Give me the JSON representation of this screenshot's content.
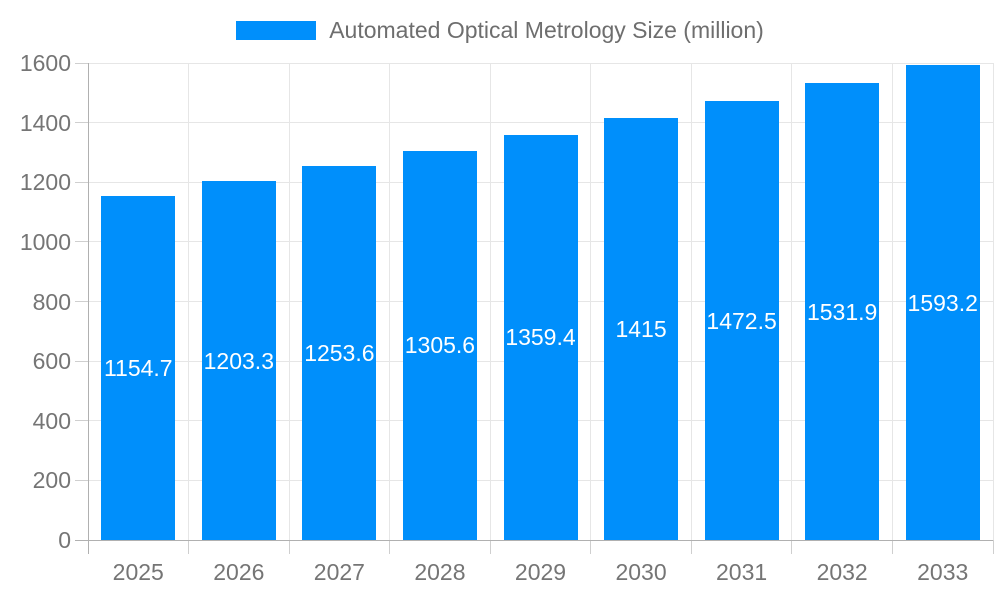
{
  "chart_data": {
    "type": "bar",
    "title": "Automated Optical Metrology Size (million)",
    "categories": [
      "2025",
      "2026",
      "2027",
      "2028",
      "2029",
      "2030",
      "2031",
      "2032",
      "2033"
    ],
    "series": [
      {
        "name": "Automated Optical Metrology Size (million)",
        "values": [
          1154.7,
          1203.3,
          1253.6,
          1305.6,
          1359.4,
          1415,
          1472.5,
          1531.9,
          1593.2
        ]
      }
    ],
    "xlabel": "",
    "ylabel": "",
    "ylim": [
      0,
      1600
    ],
    "yticks": [
      0,
      200,
      400,
      600,
      800,
      1000,
      1200,
      1400,
      1600
    ],
    "grid": true,
    "legend_position": "top-center",
    "value_label_position": "inside-center",
    "bar_color": "#008FFB"
  },
  "colors": {
    "bar": "#008FFB",
    "grid": "#e6e6e6",
    "axis": "#b0b0b0",
    "tick": "#cfcfcf",
    "axis_label": "#757575",
    "legend_text": "#6e6e6e",
    "value_label": "#ffffff",
    "background": "#ffffff"
  }
}
